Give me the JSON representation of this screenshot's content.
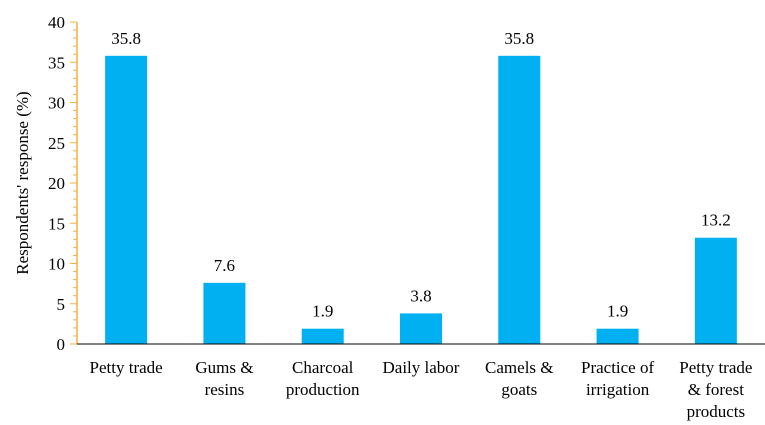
{
  "chart_data": {
    "type": "bar",
    "categories": [
      [
        "Petty trade"
      ],
      [
        "Gums &",
        "resins"
      ],
      [
        "Charcoal",
        "production"
      ],
      [
        "Daily labor"
      ],
      [
        "Camels &",
        "goats"
      ],
      [
        "Practice of",
        "irrigation"
      ],
      [
        "Petty trade",
        "& forest",
        "products"
      ]
    ],
    "values": [
      35.8,
      7.6,
      1.9,
      3.8,
      35.8,
      1.9,
      13.2
    ],
    "data_labels": [
      "35.8",
      "7.6",
      "1.9",
      "3.8",
      "35.8",
      "1.9",
      "13.2"
    ],
    "xlabel": "",
    "ylabel": "Respondents' response (%)",
    "ylim": [
      0,
      40
    ],
    "yticks": [
      "0",
      "5",
      "10",
      "15",
      "20",
      "25",
      "30",
      "35",
      "40"
    ],
    "grid": false,
    "legend": "none",
    "colors": {
      "bar": "#00B0F0",
      "axis": "#F5B041"
    }
  }
}
